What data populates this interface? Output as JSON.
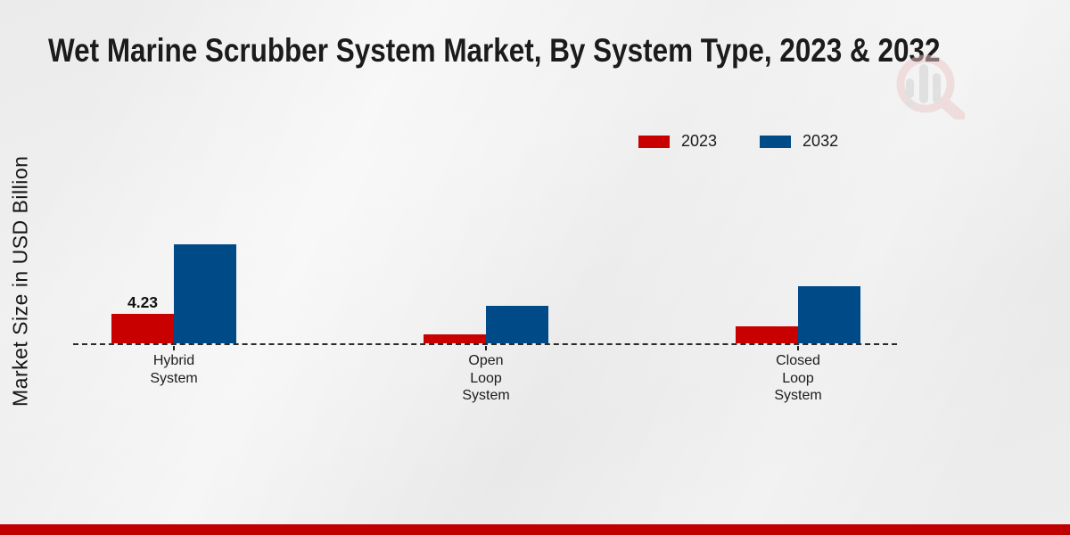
{
  "chart_data": {
    "type": "bar",
    "title": "Wet Marine Scrubber System Market, By System Type, 2023 & 2032",
    "ylabel": "Market Size in USD Billion",
    "xlabel": "",
    "categories": [
      "Hybrid System",
      "Open Loop System",
      "Closed Loop System"
    ],
    "series": [
      {
        "name": "2023",
        "color": "#c90000",
        "values": [
          4.23,
          1.3,
          2.4
        ],
        "value_labels": [
          "4.23",
          "",
          ""
        ]
      },
      {
        "name": "2032",
        "color": "#004a87",
        "values": [
          14.2,
          5.3,
          8.1
        ],
        "value_labels": [
          "",
          "",
          ""
        ]
      }
    ],
    "ylim": [
      0,
      16
    ],
    "grid": false,
    "axis_style": "dashed-baseline-only",
    "legend_position": "top-right",
    "labeled_value_note": "only Hybrid System 2023 bar carries a data label"
  },
  "watermark": {
    "icon_name": "magnifier-bar-chart-logo"
  },
  "footer": {
    "bar_color": "#c00000"
  },
  "colors": {
    "series_2023": "#c90000",
    "series_2032": "#004a87",
    "footer_band": "#c00000",
    "background": "#ededed",
    "text": "#1b1b1b"
  }
}
